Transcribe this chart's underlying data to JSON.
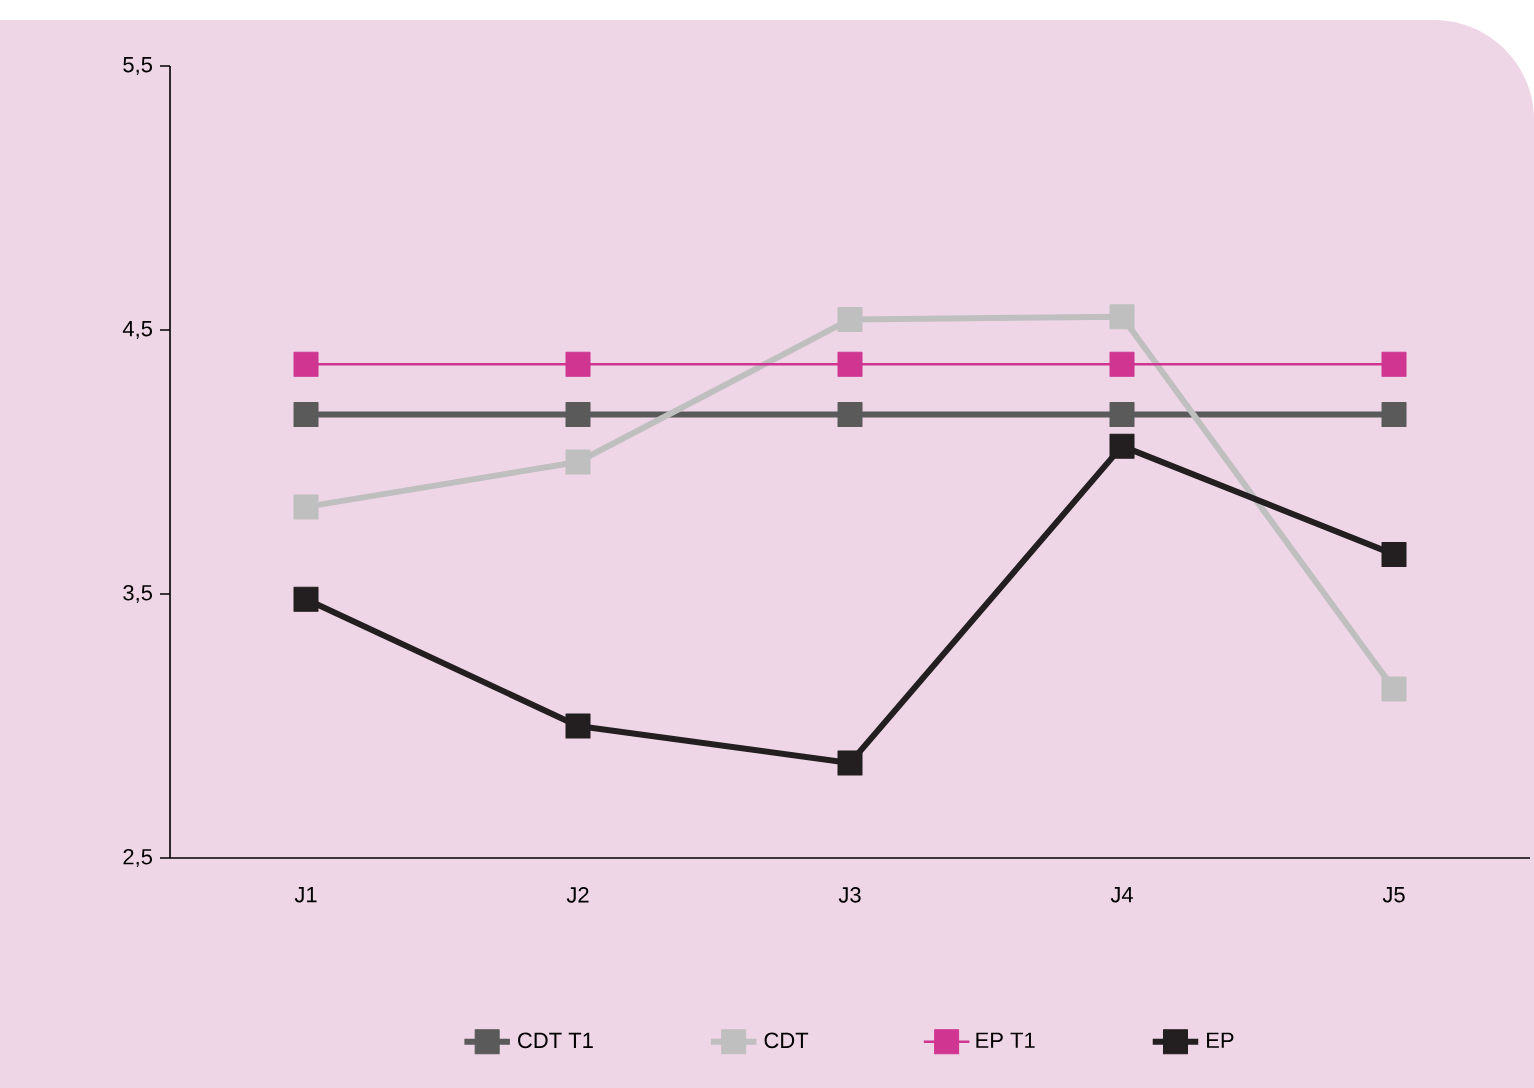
{
  "chart_data": {
    "type": "line",
    "categories": [
      "J1",
      "J2",
      "J3",
      "J4",
      "J5"
    ],
    "series": [
      {
        "name": "CDT T1",
        "color": "#5a5a5a",
        "values": [
          4.18,
          4.18,
          4.18,
          4.18,
          4.18
        ]
      },
      {
        "name": "CDT",
        "color": "#bfbfbf",
        "values": [
          3.83,
          4.0,
          4.54,
          4.55,
          3.14
        ]
      },
      {
        "name": "EP T1",
        "color": "#d03591",
        "values": [
          4.37,
          4.37,
          4.37,
          4.37,
          4.37
        ]
      },
      {
        "name": "EP",
        "color": "#231f20",
        "values": [
          3.48,
          3.0,
          2.86,
          4.06,
          3.65
        ]
      }
    ],
    "ylim": [
      2.5,
      5.5
    ],
    "yticks": [
      {
        "value": 2.5,
        "label": "2,5"
      },
      {
        "value": 3.5,
        "label": "3,5"
      },
      {
        "value": 4.5,
        "label": "4,5"
      },
      {
        "value": 5.5,
        "label": "5,5"
      }
    ],
    "marker": "square",
    "line_style": "solid",
    "legend": "bottom",
    "grid": false
  }
}
